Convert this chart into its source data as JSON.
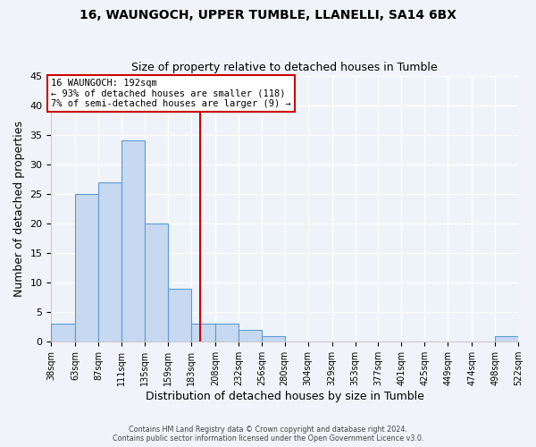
{
  "title": "16, WAUNGOCH, UPPER TUMBLE, LLANELLI, SA14 6BX",
  "subtitle": "Size of property relative to detached houses in Tumble",
  "xlabel": "Distribution of detached houses by size in Tumble",
  "ylabel": "Number of detached properties",
  "bin_edges": [
    38,
    63,
    87,
    111,
    135,
    159,
    183,
    208,
    232,
    256,
    280,
    304,
    329,
    353,
    377,
    401,
    425,
    449,
    474,
    498,
    522
  ],
  "bin_labels": [
    "38sqm",
    "63sqm",
    "87sqm",
    "111sqm",
    "135sqm",
    "159sqm",
    "183sqm",
    "208sqm",
    "232sqm",
    "256sqm",
    "280sqm",
    "304sqm",
    "329sqm",
    "353sqm",
    "377sqm",
    "401sqm",
    "425sqm",
    "449sqm",
    "474sqm",
    "498sqm",
    "522sqm"
  ],
  "counts": [
    3,
    25,
    27,
    34,
    20,
    9,
    3,
    3,
    2,
    1,
    0,
    0,
    0,
    0,
    0,
    0,
    0,
    0,
    0,
    1
  ],
  "bar_color": "#c6d9f0",
  "bar_edge_color": "#5b9bd5",
  "vline_x": 192,
  "vline_color": "#cc0000",
  "annotation_title": "16 WAUNGOCH: 192sqm",
  "annotation_line1": "← 93% of detached houses are smaller (118)",
  "annotation_line2": "7% of semi-detached houses are larger (9) →",
  "annotation_box_color": "#ffffff",
  "annotation_box_edge": "#cc0000",
  "ylim": [
    0,
    45
  ],
  "yticks": [
    0,
    5,
    10,
    15,
    20,
    25,
    30,
    35,
    40,
    45
  ],
  "footer1": "Contains HM Land Registry data © Crown copyright and database right 2024.",
  "footer2": "Contains public sector information licensed under the Open Government Licence v3.0.",
  "bg_color": "#f0f4fa",
  "plot_bg_color": "#eef3f9"
}
